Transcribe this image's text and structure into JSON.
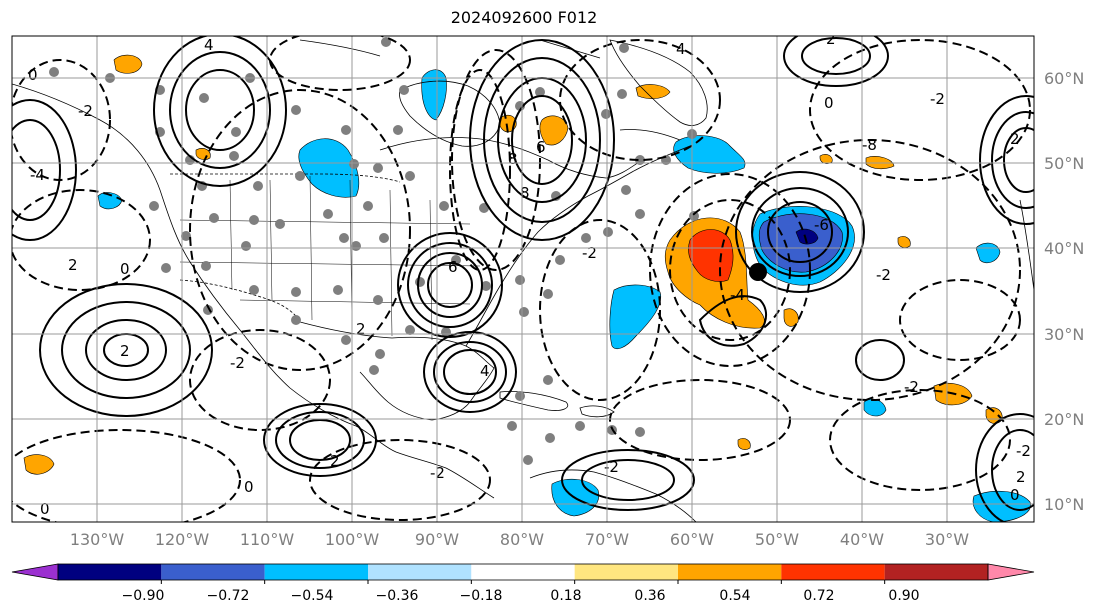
{
  "title": "2024092600 F012",
  "map": {
    "lon_labels": [
      "130°W",
      "120°W",
      "110°W",
      "100°W",
      "90°W",
      "80°W",
      "70°W",
      "60°W",
      "50°W",
      "40°W",
      "30°W"
    ],
    "lat_labels": [
      "60°N",
      "50°N",
      "40°N",
      "30°N",
      "20°N",
      "10°N"
    ],
    "contour_labels": [
      "0",
      "2",
      "4",
      "-2",
      "-4",
      "2",
      "0",
      "4",
      "8",
      "6",
      "2",
      "-2",
      "0",
      "-2",
      "2",
      "4",
      "6",
      "8",
      "2",
      "-2",
      "0",
      "-2",
      "-4",
      "-6",
      "-8",
      "2",
      "-2",
      "0",
      "-2",
      "-2",
      "0",
      "2",
      "-2"
    ]
  },
  "colorbar": {
    "tick_labels": [
      "−0.90",
      "−0.72",
      "−0.54",
      "−0.36",
      "−0.18",
      "0.18",
      "0.36",
      "0.54",
      "0.72",
      "0.90"
    ],
    "colors": [
      "#9b30d0",
      "#000080",
      "#3a5fcd",
      "#00bfff",
      "#b0e2ff",
      "#ffffff",
      "#ffe680",
      "#ffa500",
      "#ff3300",
      "#b22222",
      "#ff88aa"
    ]
  }
}
